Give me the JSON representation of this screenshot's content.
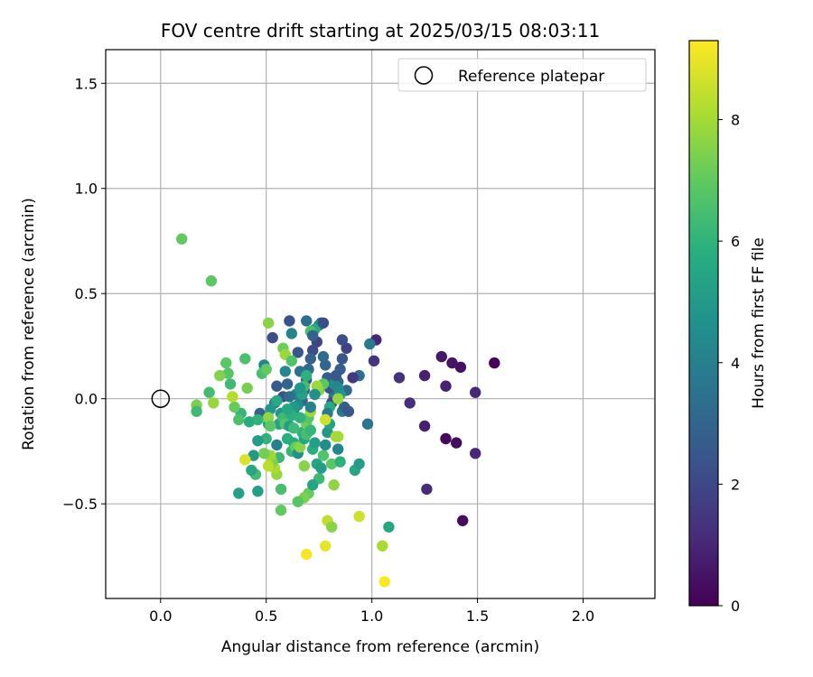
{
  "chart_data": {
    "type": "scatter",
    "title": "FOV centre drift starting at 2025/03/15 08:03:11",
    "xlabel": "Angular distance from reference (arcmin)",
    "ylabel": "Rotation from reference (arcmin)",
    "xlim": [
      -0.26,
      2.34
    ],
    "ylim": [
      -0.95,
      1.66
    ],
    "xticks": [
      0.0,
      0.5,
      1.0,
      1.5,
      2.0
    ],
    "xtick_labels": [
      "0.0",
      "0.5",
      "1.0",
      "1.5",
      "2.0"
    ],
    "yticks": [
      -0.5,
      0.0,
      0.5,
      1.0,
      1.5
    ],
    "ytick_labels": [
      "−0.5",
      "0.0",
      "0.5",
      "1.0",
      "1.5"
    ],
    "grid": true,
    "legend": {
      "position": "top-right",
      "entries": [
        "Reference platepar"
      ]
    },
    "colorbar": {
      "label": "Hours from first FF file",
      "colormap": "viridis",
      "range": [
        0,
        9.3
      ],
      "ticks": [
        0,
        2,
        4,
        6,
        8
      ],
      "tick_labels": [
        "0",
        "2",
        "4",
        "6",
        "8"
      ]
    },
    "reference_point": {
      "x": 0.0,
      "y": 0.0
    },
    "series": [
      {
        "points": [
          [
            1.58,
            0.17,
            0.1
          ],
          [
            1.43,
            -0.58,
            0.3
          ],
          [
            1.42,
            0.15,
            0.4
          ],
          [
            1.4,
            -0.21,
            0.3
          ],
          [
            1.38,
            0.17,
            0.5
          ],
          [
            1.35,
            -0.19,
            0.2
          ],
          [
            1.33,
            0.2,
            0.6
          ],
          [
            1.35,
            0.06,
            0.9
          ],
          [
            1.49,
            0.03,
            1.0
          ],
          [
            1.49,
            -0.26,
            1.0
          ],
          [
            1.25,
            0.11,
            0.9
          ],
          [
            1.26,
            -0.43,
            1.1
          ],
          [
            1.25,
            -0.13,
            0.8
          ],
          [
            1.18,
            -0.02,
            1.2
          ],
          [
            1.13,
            0.1,
            1.3
          ],
          [
            1.02,
            0.28,
            1.0
          ],
          [
            1.01,
            0.18,
            1.4
          ],
          [
            0.99,
            0.26,
            3.8
          ],
          [
            0.98,
            -0.12,
            3.6
          ],
          [
            0.94,
            0.11,
            3.4
          ],
          [
            0.91,
            0.1,
            1.6
          ],
          [
            0.88,
            0.24,
            1.8
          ],
          [
            0.86,
            0.28,
            2.2
          ],
          [
            0.86,
            0.19,
            2.5
          ],
          [
            0.85,
            0.14,
            2.8
          ],
          [
            0.84,
            0.08,
            3.1
          ],
          [
            0.83,
            0.04,
            3.3
          ],
          [
            0.82,
            0.01,
            3.6
          ],
          [
            0.81,
            -0.02,
            2.0
          ],
          [
            0.8,
            0.05,
            2.4
          ],
          [
            0.79,
            0.1,
            2.7
          ],
          [
            0.78,
            0.16,
            3.0
          ],
          [
            0.77,
            0.2,
            3.2
          ],
          [
            0.76,
            0.36,
            2.6
          ],
          [
            0.75,
            0.35,
            4.4
          ],
          [
            0.74,
            0.27,
            1.9
          ],
          [
            0.73,
            0.33,
            5.6
          ],
          [
            0.72,
            0.23,
            2.1
          ],
          [
            0.71,
            0.19,
            2.9
          ],
          [
            0.7,
            0.14,
            3.2
          ],
          [
            0.69,
            0.09,
            2.3
          ],
          [
            0.68,
            0.04,
            2.7
          ],
          [
            0.67,
            -0.01,
            3.1
          ],
          [
            0.66,
            0.13,
            3.5
          ],
          [
            0.65,
            0.22,
            2.5
          ],
          [
            0.64,
            0.02,
            4.0
          ],
          [
            0.63,
            -0.06,
            4.6
          ],
          [
            0.62,
            0.31,
            4.1
          ],
          [
            0.61,
            0.37,
            2.3
          ],
          [
            0.6,
            0.07,
            3.0
          ],
          [
            0.59,
            0.13,
            4.3
          ],
          [
            0.58,
            0.01,
            2.4
          ],
          [
            0.57,
            -0.07,
            4.8
          ],
          [
            0.56,
            -0.12,
            5.3
          ],
          [
            0.55,
            0.06,
            2.6
          ],
          [
            0.54,
            -0.02,
            3.7
          ],
          [
            0.53,
            0.29,
            2.2
          ],
          [
            0.52,
            -0.05,
            4.9
          ],
          [
            0.51,
            -0.12,
            5.4
          ],
          [
            0.5,
            -0.19,
            6.0
          ],
          [
            0.49,
            0.16,
            4.2
          ],
          [
            0.48,
            0.12,
            6.5
          ],
          [
            0.47,
            -0.07,
            2.9
          ],
          [
            0.46,
            -0.2,
            5.1
          ],
          [
            0.45,
            -0.36,
            6.4
          ],
          [
            0.46,
            -0.44,
            5.2
          ],
          [
            0.44,
            -0.27,
            5.0
          ],
          [
            0.43,
            -0.34,
            5.5
          ],
          [
            0.42,
            -0.11,
            5.7
          ],
          [
            0.41,
            0.05,
            7.3
          ],
          [
            0.4,
            0.19,
            6.6
          ],
          [
            0.38,
            -0.07,
            6.1
          ],
          [
            0.37,
            -0.1,
            6.6
          ],
          [
            0.37,
            -0.45,
            5.3
          ],
          [
            0.35,
            -0.04,
            7.1
          ],
          [
            0.34,
            0.01,
            8.2
          ],
          [
            0.33,
            0.07,
            6.3
          ],
          [
            0.32,
            0.12,
            6.8
          ],
          [
            0.31,
            0.17,
            6.9
          ],
          [
            0.28,
            0.11,
            7.5
          ],
          [
            0.25,
            -0.02,
            7.8
          ],
          [
            0.23,
            0.03,
            6.4
          ],
          [
            0.17,
            -0.03,
            7.4
          ],
          [
            0.17,
            -0.06,
            6.3
          ],
          [
            0.1,
            0.76,
            7.0
          ],
          [
            0.24,
            0.56,
            6.9
          ],
          [
            0.51,
            0.36,
            7.6
          ],
          [
            0.58,
            0.24,
            7.2
          ],
          [
            0.59,
            0.21,
            7.9
          ],
          [
            0.62,
            0.18,
            6.7
          ],
          [
            0.55,
            -0.22,
            4.0
          ],
          [
            0.56,
            -0.28,
            6.2
          ],
          [
            0.57,
            -0.43,
            6.5
          ],
          [
            0.57,
            -0.53,
            7.0
          ],
          [
            0.55,
            -0.36,
            7.8
          ],
          [
            0.54,
            -0.33,
            8.1
          ],
          [
            0.53,
            -0.3,
            7.4
          ],
          [
            0.52,
            -0.27,
            7.9
          ],
          [
            0.51,
            -0.32,
            8.3
          ],
          [
            0.51,
            -0.09,
            7.7
          ],
          [
            0.52,
            -0.13,
            6.9
          ],
          [
            0.55,
            -0.01,
            5.6
          ],
          [
            0.58,
            -0.09,
            6.3
          ],
          [
            0.6,
            -0.19,
            5.8
          ],
          [
            0.62,
            -0.25,
            6.1
          ],
          [
            0.63,
            -0.21,
            5.7
          ],
          [
            0.64,
            -0.23,
            7.1
          ],
          [
            0.65,
            -0.26,
            4.7
          ],
          [
            0.66,
            -0.23,
            7.6
          ],
          [
            0.67,
            -0.16,
            6.0
          ],
          [
            0.68,
            -0.19,
            5.4
          ],
          [
            0.69,
            -0.12,
            7.2
          ],
          [
            0.7,
            -0.09,
            6.8
          ],
          [
            0.71,
            -0.06,
            7.9
          ],
          [
            0.72,
            -0.24,
            5.8
          ],
          [
            0.73,
            -0.21,
            5.2
          ],
          [
            0.74,
            -0.31,
            5.5
          ],
          [
            0.75,
            -0.38,
            6.3
          ],
          [
            0.76,
            -0.33,
            5.1
          ],
          [
            0.77,
            -0.27,
            6.7
          ],
          [
            0.78,
            -0.22,
            4.5
          ],
          [
            0.79,
            -0.16,
            4.9
          ],
          [
            0.8,
            -0.12,
            5.3
          ],
          [
            0.81,
            -0.31,
            6.9
          ],
          [
            0.82,
            -0.41,
            7.7
          ],
          [
            0.83,
            -0.18,
            8.1
          ],
          [
            0.84,
            -0.24,
            4.2
          ],
          [
            0.85,
            -0.3,
            5.9
          ],
          [
            0.86,
            -0.06,
            3.9
          ],
          [
            0.87,
            -0.04,
            2.8
          ],
          [
            0.88,
            0.04,
            3.2
          ],
          [
            0.89,
            -0.06,
            2.5
          ],
          [
            0.92,
            -0.34,
            5.5
          ],
          [
            0.94,
            -0.31,
            5.1
          ],
          [
            0.85,
            0.02,
            5.0
          ],
          [
            0.84,
            0.05,
            4.6
          ],
          [
            0.82,
            0.07,
            4.3
          ],
          [
            0.8,
            -0.04,
            5.7
          ],
          [
            0.79,
            -0.07,
            3.8
          ],
          [
            0.77,
            0.07,
            6.9
          ],
          [
            0.75,
            0.04,
            7.5
          ],
          [
            0.74,
            0.06,
            7.9
          ],
          [
            0.73,
            0.02,
            4.6
          ],
          [
            0.71,
            -0.04,
            4.0
          ],
          [
            0.69,
            0.11,
            5.9
          ],
          [
            0.68,
            0.06,
            6.4
          ],
          [
            0.67,
            0.02,
            5.3
          ],
          [
            0.65,
            -0.03,
            4.4
          ],
          [
            0.63,
            -0.04,
            5.0
          ],
          [
            0.62,
            -0.08,
            5.9
          ],
          [
            0.6,
            -0.05,
            5.5
          ],
          [
            0.59,
            -0.12,
            6.7
          ],
          [
            0.61,
            -0.13,
            5.2
          ],
          [
            0.63,
            -0.14,
            6.3
          ],
          [
            0.66,
            -0.09,
            6.0
          ],
          [
            0.69,
            -0.17,
            6.5
          ],
          [
            0.71,
            -0.15,
            6.1
          ],
          [
            0.68,
            -0.32,
            7.6
          ],
          [
            0.7,
            -0.45,
            7.1
          ],
          [
            0.68,
            -0.47,
            7.4
          ],
          [
            0.65,
            -0.49,
            6.8
          ],
          [
            0.72,
            -0.41,
            5.4
          ],
          [
            0.79,
            -0.58,
            8.4
          ],
          [
            0.81,
            -0.61,
            7.6
          ],
          [
            0.78,
            -0.7,
            9.0
          ],
          [
            0.69,
            -0.74,
            9.2
          ],
          [
            0.94,
            -0.56,
            8.6
          ],
          [
            1.05,
            -0.7,
            8.1
          ],
          [
            1.08,
            -0.61,
            5.5
          ],
          [
            1.06,
            -0.87,
            9.3
          ],
          [
            0.4,
            -0.29,
            8.8
          ],
          [
            0.49,
            -0.26,
            7.3
          ],
          [
            0.46,
            -0.1,
            6.0
          ],
          [
            0.5,
            0.14,
            7.0
          ],
          [
            0.71,
            0.32,
            6.6
          ],
          [
            0.72,
            0.3,
            2.9
          ],
          [
            0.77,
            0.36,
            2.2
          ],
          [
            0.69,
            0.37,
            3.4
          ],
          [
            0.83,
            0.11,
            2.6
          ],
          [
            0.84,
            -0.18,
            8.0
          ],
          [
            0.78,
            -0.1,
            8.6
          ],
          [
            0.84,
            0.0,
            7.8
          ],
          [
            0.61,
            0.01,
            3.3
          ],
          [
            0.66,
            0.05,
            4.9
          ]
        ]
      }
    ]
  }
}
